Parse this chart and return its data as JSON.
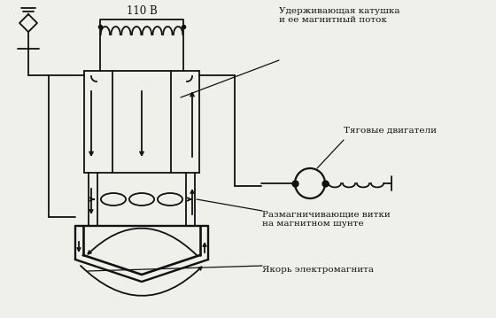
{
  "background_color": "#f0f0eb",
  "labels": {
    "110V": "110 В",
    "holding_coil": "Удерживающая катушка\nи ее магнитный поток",
    "traction_motors": "Тяговые двигатели",
    "demagnetizing": "Размагничивающие витки\nна магнитном шунте",
    "armature": "Якорь электромагнита"
  },
  "line_color": "#111111"
}
